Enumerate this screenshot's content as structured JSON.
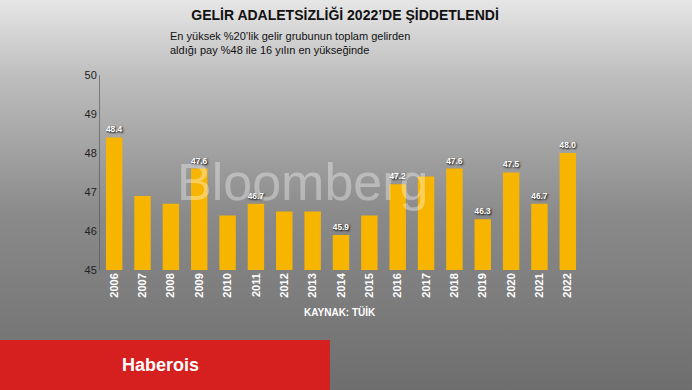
{
  "chart_data": {
    "type": "bar",
    "title": "GELİR ADALETSİZLİĞİ 2022’DE ŞİDDETLENDİ",
    "subtitle": "En yüksek %20’lik gelir grubunun toplam gelirden\naldığı pay %48 ile 16 yılın en yükseğinde",
    "categories": [
      "2006",
      "2007",
      "2008",
      "2009",
      "2010",
      "2011",
      "2012",
      "2013",
      "2014",
      "2015",
      "2016",
      "2017",
      "2018",
      "2019",
      "2020",
      "2021",
      "2022"
    ],
    "values": [
      48.4,
      46.9,
      46.7,
      47.6,
      46.4,
      46.7,
      46.5,
      46.5,
      45.9,
      46.4,
      47.2,
      47.4,
      47.6,
      46.3,
      47.5,
      46.7,
      48.0
    ],
    "value_labels": [
      "48.4",
      null,
      null,
      "47.6",
      null,
      "46.7",
      null,
      null,
      "45.9",
      null,
      "47.2",
      null,
      "47.6",
      "46.3",
      "47.5",
      "46.7",
      "48.0"
    ],
    "data_labels": true,
    "color": "#f7b500",
    "ylim": [
      45,
      50
    ],
    "yticks": [
      45,
      46,
      47,
      48,
      49,
      50
    ],
    "grid": false,
    "source": "KAYNAK: TÜİK",
    "watermark": "Bloomberg",
    "brand": "Haberois"
  }
}
